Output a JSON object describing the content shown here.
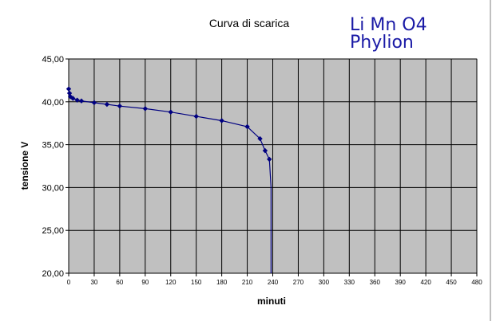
{
  "chart_data": {
    "type": "line",
    "title": "Curva di scarica",
    "brand_lines": [
      "Li Mn O4",
      "Phylion"
    ],
    "xlabel": "minuti",
    "ylabel": "tensione V",
    "xlim": [
      0,
      480
    ],
    "ylim": [
      20,
      45
    ],
    "x_ticks": [
      0,
      30,
      60,
      90,
      120,
      150,
      180,
      210,
      240,
      270,
      300,
      330,
      360,
      390,
      420,
      450,
      480
    ],
    "y_ticks": [
      "20,00",
      "25,00",
      "30,00",
      "35,00",
      "40,00",
      "45,00"
    ],
    "y_tick_values": [
      20,
      25,
      30,
      35,
      40,
      45
    ],
    "grid": true,
    "colors": {
      "plot_background": "#c0c0c0",
      "grid": "#000000",
      "series": "#000080",
      "brand": "#1a1aa6"
    },
    "series": [
      {
        "x": [
          0,
          1,
          2,
          5,
          10,
          15,
          30,
          45,
          60,
          90,
          120,
          150,
          180,
          210,
          225,
          231,
          236,
          238,
          238
        ],
        "y": [
          41.5,
          41.0,
          40.6,
          40.4,
          40.2,
          40.1,
          39.9,
          39.7,
          39.5,
          39.2,
          38.8,
          38.3,
          37.8,
          37.1,
          35.7,
          34.3,
          33.3,
          30.0,
          20.0
        ],
        "markers": [
          true,
          true,
          true,
          true,
          true,
          true,
          true,
          true,
          true,
          true,
          true,
          true,
          true,
          true,
          true,
          true,
          true,
          false,
          false
        ]
      }
    ]
  }
}
